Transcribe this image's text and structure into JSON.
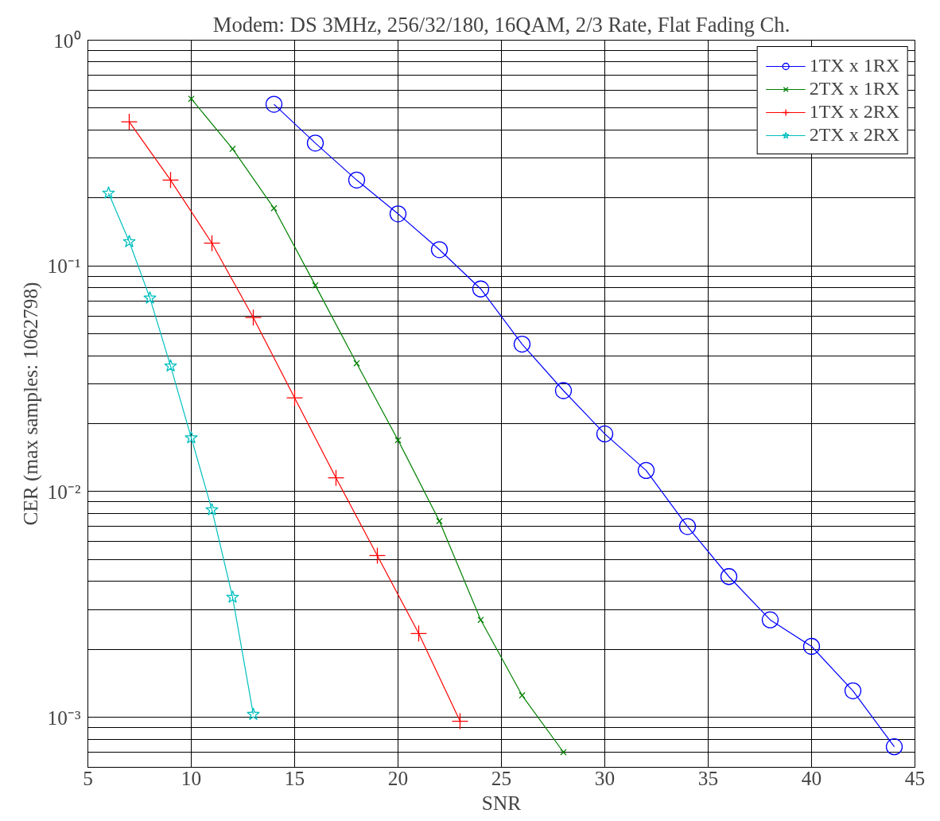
{
  "chart_data": {
    "type": "line",
    "title": "Modem: DS 3MHz, 256/32/180, 16QAM, 2/3 Rate, Flat Fading Ch.",
    "xlabel": "SNR",
    "ylabel": "CER (max samples: 1062798)",
    "log": "y",
    "grid": true,
    "legend": "top right",
    "line_style": "solid",
    "xlim": [
      5,
      45
    ],
    "xticks": [
      5,
      10,
      15,
      20,
      25,
      30,
      35,
      40,
      45
    ],
    "ylim": [
      0.0006,
      1
    ],
    "yticks": [
      {
        "value": 0.001,
        "label": "10⁻³"
      },
      {
        "value": 0.01,
        "label": "10⁻²"
      },
      {
        "value": 0.1,
        "label": "10⁻¹"
      },
      {
        "value": 1,
        "label": "10⁰"
      }
    ],
    "series": [
      {
        "name": "1TX x 1RX",
        "color": "#0000ff",
        "marker": "circle",
        "x": [
          14,
          16,
          18,
          20,
          22,
          24,
          26,
          28,
          30,
          32,
          34,
          36,
          38,
          40,
          42,
          44
        ],
        "values": [
          0.52,
          0.35,
          0.24,
          0.17,
          0.118,
          0.079,
          0.045,
          0.028,
          0.018,
          0.0124,
          0.007,
          0.0042,
          0.0027,
          0.00206,
          0.00131,
          0.00074
        ]
      },
      {
        "name": "2TX x 1RX",
        "color": "#008000",
        "marker": "x",
        "x": [
          10,
          12,
          14,
          16,
          18,
          20,
          22,
          24,
          26,
          28
        ],
        "values": [
          0.55,
          0.33,
          0.18,
          0.082,
          0.037,
          0.0169,
          0.0074,
          0.0027,
          0.00125,
          0.0007
        ]
      },
      {
        "name": "1TX x 2RX",
        "color": "#ff0000",
        "marker": "cross",
        "x": [
          7,
          9,
          11,
          13,
          15,
          17,
          19,
          21,
          23
        ],
        "values": [
          0.435,
          0.24,
          0.126,
          0.059,
          0.026,
          0.0115,
          0.0052,
          0.00235,
          0.00096
        ]
      },
      {
        "name": "2TX x 2RX",
        "color": "#00bfbf",
        "marker": "star",
        "x": [
          6,
          7,
          8,
          9,
          10,
          11,
          12,
          13
        ],
        "values": [
          0.21,
          0.128,
          0.072,
          0.036,
          0.0173,
          0.0083,
          0.0034,
          0.00103
        ]
      }
    ]
  }
}
